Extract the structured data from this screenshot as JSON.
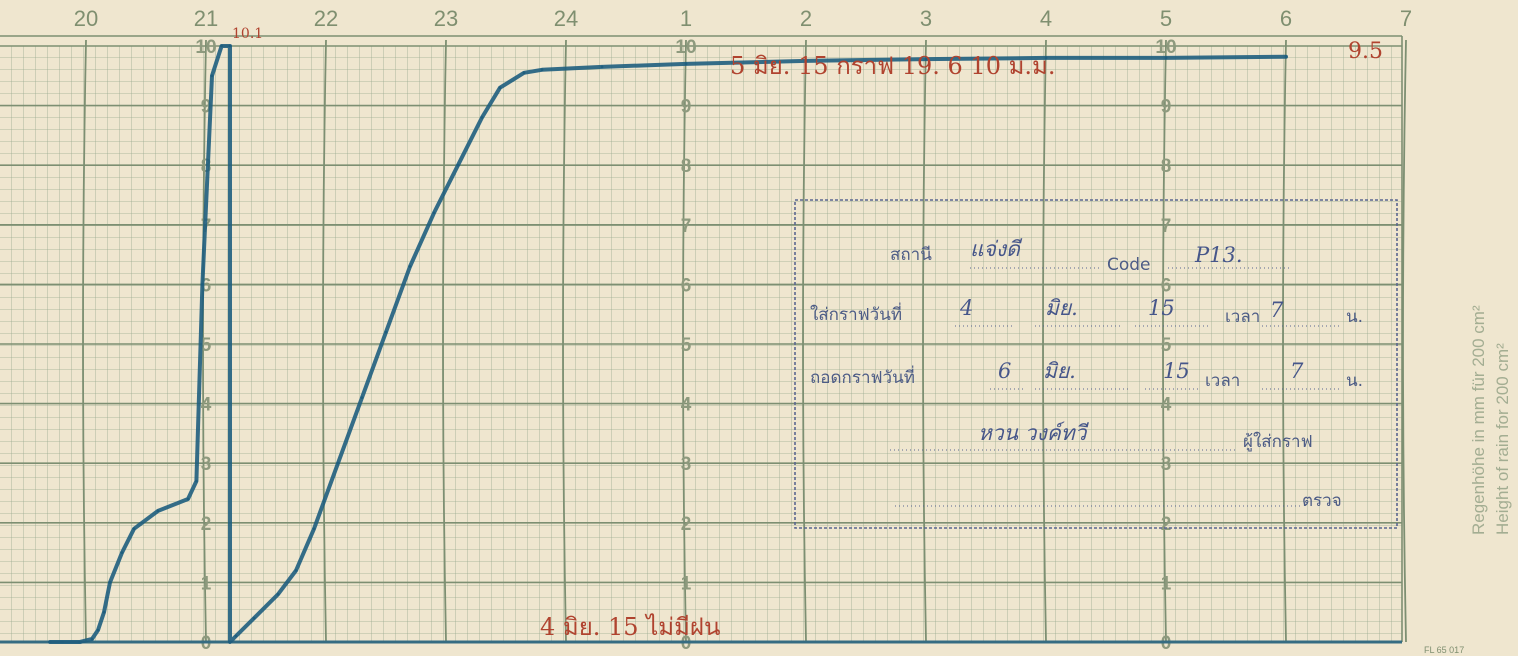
{
  "chart_data": {
    "type": "line",
    "x_ticks": [
      "20",
      "21",
      "22",
      "23",
      "24",
      "1",
      "2",
      "3",
      "4",
      "5",
      "6",
      "7"
    ],
    "y_ticks": [
      "0",
      "1",
      "2",
      "3",
      "4",
      "5",
      "6",
      "7",
      "8",
      "9",
      "10"
    ],
    "ylim": [
      0,
      10
    ],
    "grid": true,
    "series": [
      {
        "x": [
          19.7,
          19.8,
          19.95,
          20.05,
          20.1,
          20.15,
          20.2,
          20.3,
          20.4,
          20.6,
          20.85,
          20.92,
          20.97,
          21.05,
          21.13,
          21.2,
          21.2,
          21.25,
          21.4,
          21.6,
          21.75,
          21.9,
          22.1,
          22.3,
          22.5,
          22.7,
          22.9,
          23.1,
          23.3,
          23.45,
          23.65,
          23.8,
          24.3,
          25.0,
          26.0,
          27.0,
          28.0,
          29.0,
          30.0
        ],
        "y": [
          0.0,
          0.0,
          0.0,
          0.05,
          0.2,
          0.5,
          1.0,
          1.5,
          1.9,
          2.2,
          2.4,
          2.7,
          6.0,
          9.5,
          10.0,
          10.0,
          0.0,
          0.1,
          0.4,
          0.8,
          1.2,
          1.9,
          3.0,
          4.1,
          5.2,
          6.3,
          7.2,
          8.0,
          8.8,
          9.3,
          9.55,
          9.6,
          9.65,
          9.7,
          9.75,
          9.78,
          9.8,
          9.8,
          9.82
        ]
      }
    ],
    "annotations": [
      "10.1",
      "9.5"
    ]
  },
  "chart_labels": {
    "note_top": "5  มิย. 15    กราฟ  19. 6  10 ม.ม.",
    "note_top_right": "9.5",
    "note_peak": "10.1",
    "note_bottom": "4  มิย. 15  ไม่มีฝน"
  },
  "stamp": {
    "line1_label": "สถานี",
    "line1_value": "แจ่งดี",
    "line1_code_label": "Code",
    "line1_code_value": "P13.",
    "line2_label": "ใส่กราฟวันที่",
    "line2_day": "4",
    "line2_month": "มิย.",
    "line2_year": "15",
    "line2_time_label": "เวลา",
    "line2_time": "7",
    "line2_unit": "น.",
    "line3_label": "ถอดกราฟวันที่",
    "line3_day": "6",
    "line3_month": "มิย.",
    "line3_year": "15",
    "line3_time_label": "เวลา",
    "line3_time": "7",
    "line3_unit": "น.",
    "line4_value": "หวน วงค์ทวี",
    "line4_label": "ผู้ใส่กราฟ",
    "line5_label": "ตรวจ"
  },
  "side_text": {
    "line1": "Regenhöhe in mm für 200 cm²",
    "line2": "Height of rain for 200 cm²"
  },
  "footer_code": "FL 65 017",
  "colors": {
    "paper": "#efe6cf",
    "grid": "#8fa086",
    "trace": "#1f5e7e",
    "pencil": "#b0432f",
    "stamp": "#46568a"
  }
}
